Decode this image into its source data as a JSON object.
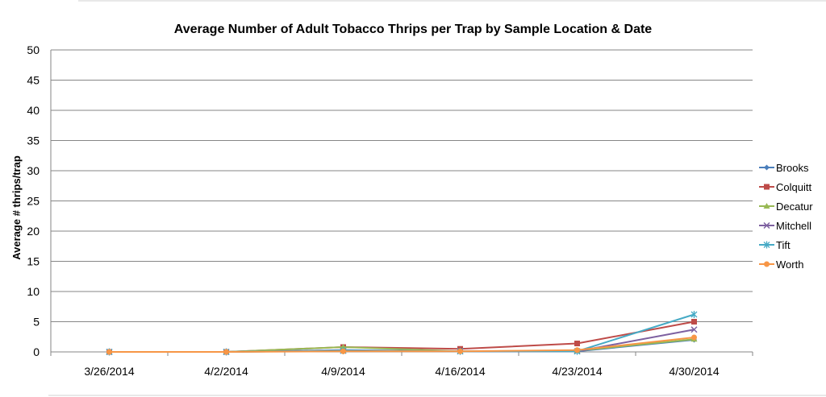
{
  "chart_data": {
    "type": "line",
    "title": "Average Number of Adult Tobacco Thrips per Trap by Sample Location & Date",
    "xlabel": "",
    "ylabel": "Average # thrips/trap",
    "categories": [
      "3/26/2014",
      "4/2/2014",
      "4/9/2014",
      "4/16/2014",
      "4/23/2014",
      "4/30/2014"
    ],
    "ylim": [
      0,
      50
    ],
    "yticks": [
      "0",
      "5",
      "10",
      "15",
      "20",
      "25",
      "30",
      "35",
      "40",
      "45",
      "50"
    ],
    "grid": true,
    "legend_position": "right",
    "series": [
      {
        "name": "Brooks",
        "color": "#4a7ebb",
        "marker": "diamond",
        "values": [
          0,
          0,
          0.3,
          0.1,
          0.1,
          2.0
        ]
      },
      {
        "name": "Colquitt",
        "color": "#be4b48",
        "marker": "square",
        "values": [
          0,
          0,
          0.8,
          0.5,
          1.4,
          5.0
        ]
      },
      {
        "name": "Decatur",
        "color": "#98b954",
        "marker": "triangle",
        "values": [
          0,
          0,
          0.8,
          0.1,
          0.2,
          2.1
        ]
      },
      {
        "name": "Mitchell",
        "color": "#7d60a0",
        "marker": "x",
        "values": [
          0,
          0,
          0.2,
          0.1,
          0.1,
          3.7
        ]
      },
      {
        "name": "Tift",
        "color": "#46aac5",
        "marker": "star",
        "values": [
          0,
          0,
          0.2,
          0.1,
          0.1,
          6.2
        ]
      },
      {
        "name": "Worth",
        "color": "#f79646",
        "marker": "circle",
        "values": [
          0,
          0,
          0.1,
          0.1,
          0.3,
          2.4
        ]
      }
    ]
  }
}
